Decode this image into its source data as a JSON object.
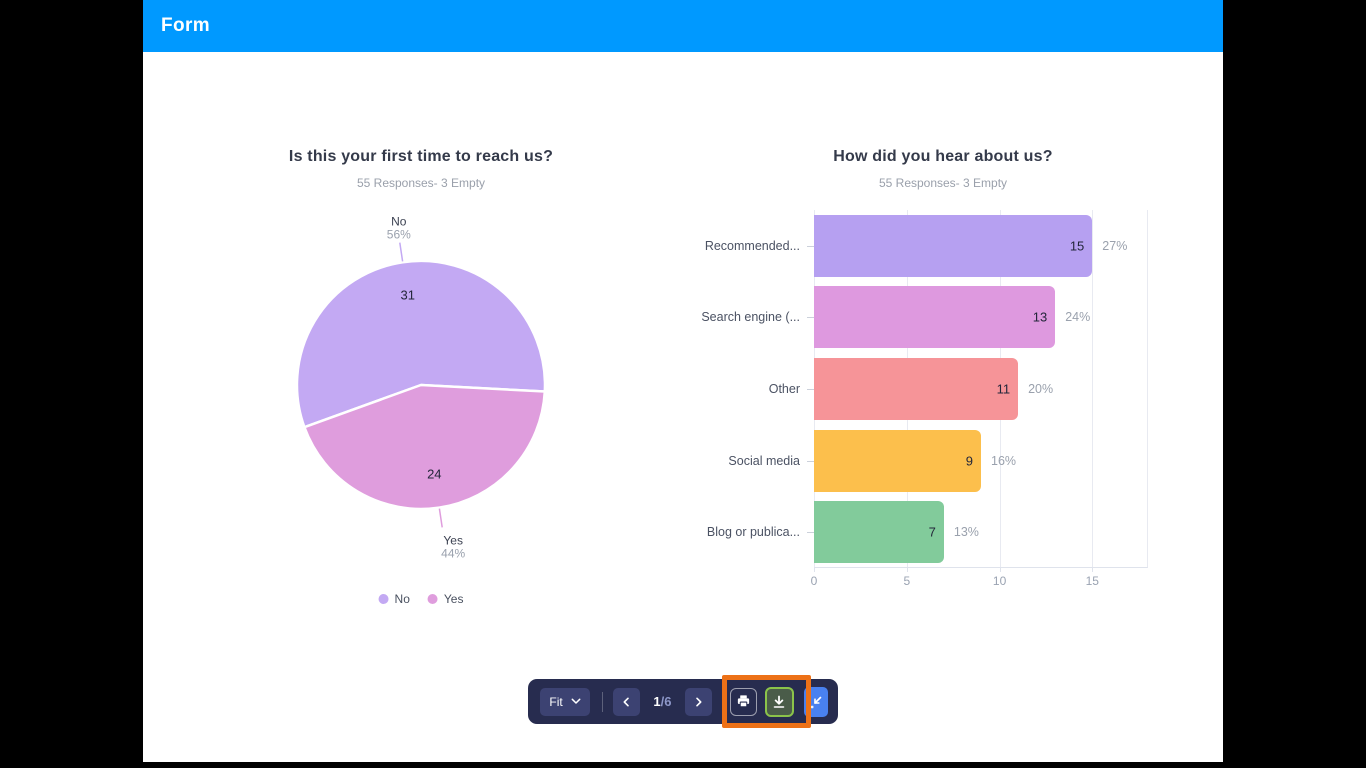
{
  "header": {
    "title": "Form"
  },
  "colors": {
    "header_bg": "#0099ff",
    "title_text": "#343a4a",
    "subtitle_text": "#9aa0ab",
    "value_text": "#23263a",
    "percent_text": "#9aa1ad",
    "category_text": "#4b5263",
    "tick_text": "#9aa3b2",
    "grid_line": "#e8eaf1",
    "axis_line": "#dfe3ec",
    "legend_text": "#4a5160",
    "toolbar_bg": "#272c4f",
    "toolbar_button_bg": "#3c4272",
    "toolbar_divider": "rgba(255,255,255,0.25)",
    "page_total_text": "#8d97c9",
    "print_button_border": "rgba(255,255,255,0.55)",
    "download_button_bg": "#4a5c49",
    "download_button_border": "#8bc34a",
    "primary_button_bg": "#4981f0",
    "annotation": "#ed7117"
  },
  "chart_data": [
    {
      "type": "pie",
      "title": "Is this your first time to reach us?",
      "subtitle": "55 Responses- 3 Empty",
      "labels": [
        "No",
        "Yes"
      ],
      "values": [
        31,
        24
      ],
      "percents": [
        "56%",
        "44%"
      ],
      "colors": [
        "#c3a9f3",
        "#df9ddd"
      ],
      "legend_position": "bottom"
    },
    {
      "type": "bar",
      "orientation": "horizontal",
      "title": "How did you hear about us?",
      "subtitle": "55 Responses- 3 Empty",
      "categories": [
        "Recommended...",
        "Search engine (...",
        "Other",
        "Social media",
        "Blog or publica..."
      ],
      "values": [
        15,
        13,
        11,
        9,
        7
      ],
      "percents": [
        "27%",
        "24%",
        "20%",
        "16%",
        "13%"
      ],
      "colors": [
        "#b6a0f1",
        "#de99df",
        "#f69498",
        "#fcbf4c",
        "#82cb9b"
      ],
      "xticks": [
        0,
        5,
        10,
        15
      ],
      "xlim": [
        0,
        18
      ],
      "grid": true,
      "legend_position": "none"
    }
  ],
  "toolbar": {
    "zoom_label": "Fit",
    "page_current": "1",
    "page_total": "/6",
    "buttons": [
      "zoom-fit-dropdown",
      "previous-page",
      "next-page",
      "print",
      "download",
      "collapse"
    ]
  }
}
